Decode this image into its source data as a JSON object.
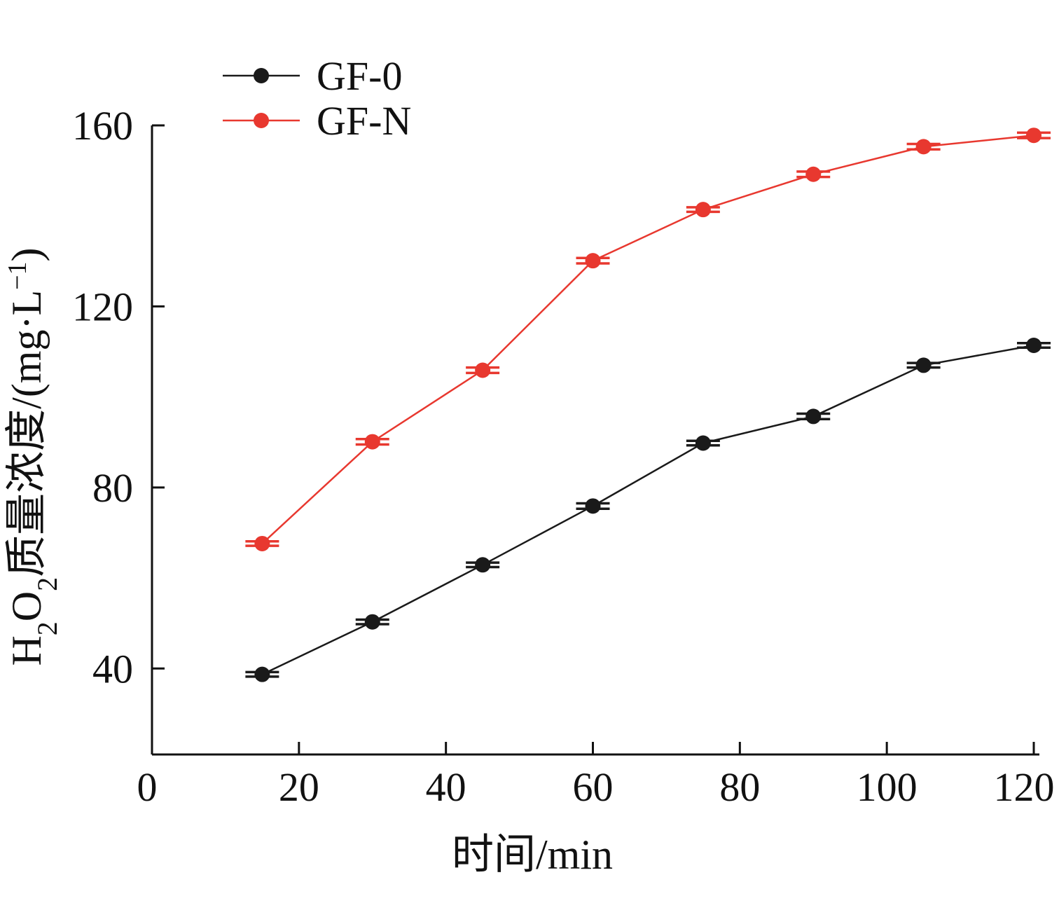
{
  "chart_data": {
    "type": "line",
    "title": "",
    "xlabel": "时间/min",
    "ylabel": {
      "prefix": "H",
      "sub1": "2",
      "mid": "O",
      "sub2": "2",
      "name": "质量浓度/(mg·L",
      "sup": "−1",
      "suffix": ")"
    },
    "xlim": [
      0,
      120
    ],
    "ylim": [
      21,
      160
    ],
    "xticks": [
      0,
      20,
      40,
      60,
      80,
      100,
      120
    ],
    "yticks": [
      40,
      80,
      120,
      160
    ],
    "grid": false,
    "legend_position": "top-left",
    "series": [
      {
        "name": "GF-0",
        "color": "#1a1a1a",
        "x": [
          15,
          30,
          45,
          60,
          75,
          90,
          105,
          120
        ],
        "y": [
          38.7,
          50.3,
          62.9,
          75.9,
          89.8,
          95.7,
          107.0,
          111.4
        ],
        "err": [
          0.5,
          0.5,
          0.5,
          0.6,
          0.5,
          0.6,
          0.5,
          0.5
        ]
      },
      {
        "name": "GF-N",
        "color": "#e8382f",
        "x": [
          15,
          30,
          45,
          60,
          75,
          90,
          105,
          120
        ],
        "y": [
          67.6,
          90.1,
          105.9,
          130.1,
          141.4,
          149.2,
          155.3,
          157.8
        ],
        "err": [
          0.5,
          0.6,
          0.6,
          0.6,
          0.5,
          0.6,
          0.6,
          0.6
        ]
      }
    ]
  }
}
